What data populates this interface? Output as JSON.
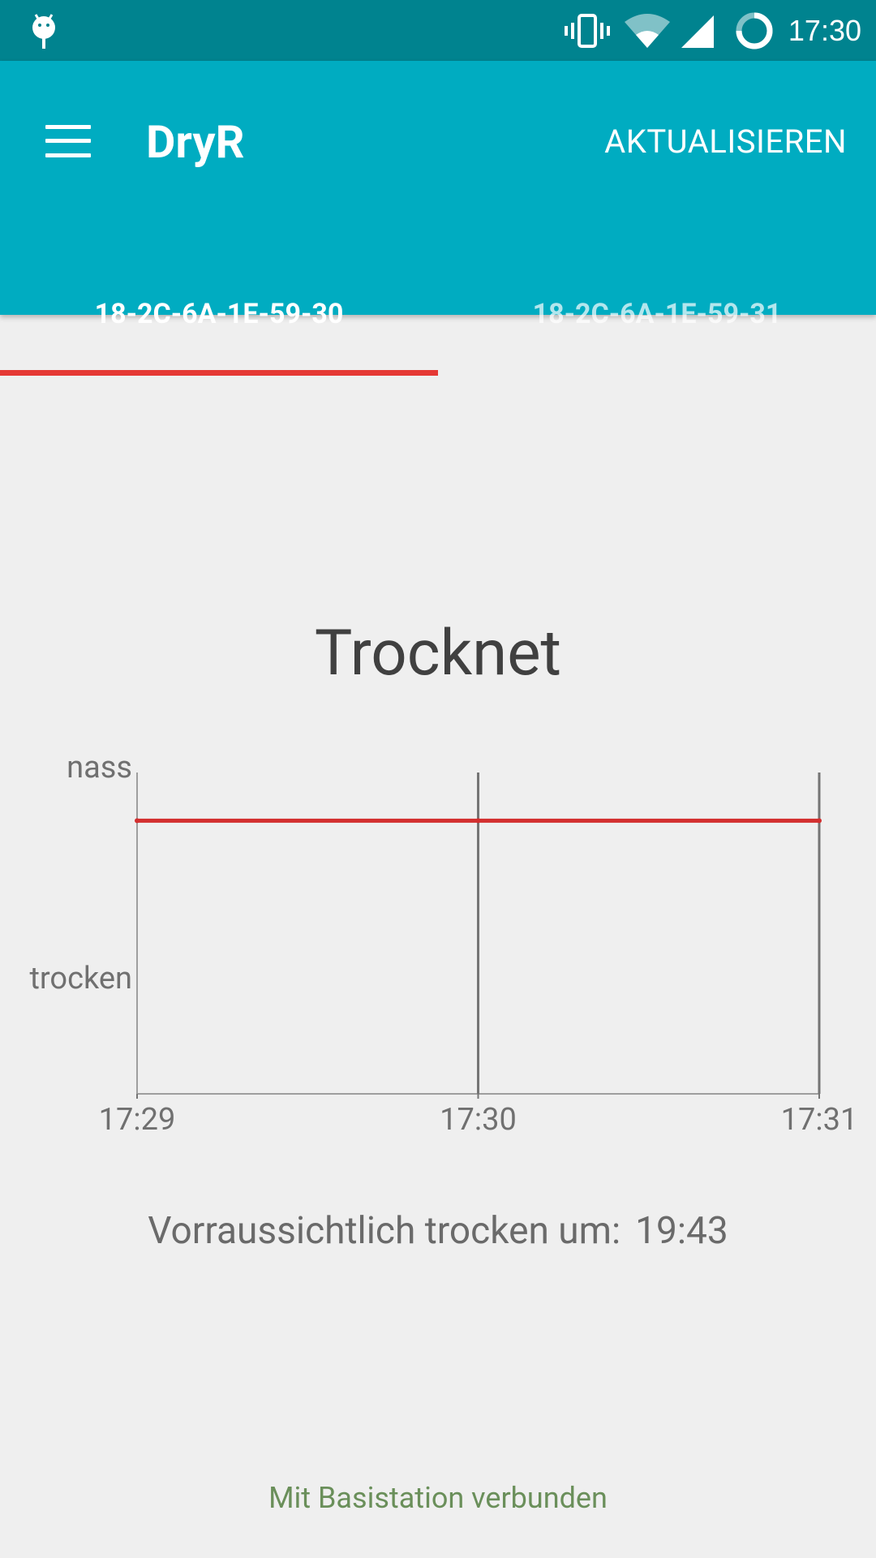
{
  "status_bar": {
    "time": "17:30",
    "icons": [
      "android-debug-icon",
      "vibrate-icon",
      "wifi-icon",
      "signal-icon",
      "sync-icon"
    ]
  },
  "app_bar": {
    "menu_icon": "hamburger-menu-icon",
    "title": "DryR",
    "action_label": "AKTUALISIEREN",
    "background": "#00acc1",
    "statusbar_background": "#00838f"
  },
  "tabs": [
    {
      "label": "18-2C-6A-1E-59-30",
      "active": true
    },
    {
      "label": "18-2C-6A-1E-59-31",
      "active": false
    }
  ],
  "main": {
    "status_title": "Trocknet",
    "forecast_label": "Vorraussichtlich trocken um:",
    "forecast_value": "19:43",
    "connection_status": "Mit Basistation verbunden"
  },
  "chart_data": {
    "type": "line",
    "title": "",
    "xlabel": "",
    "ylabel": "",
    "x_ticks": [
      "17:29",
      "17:30",
      "17:31"
    ],
    "y_ticks": [
      "trocken",
      "nass"
    ],
    "grid": "vertical",
    "series": [
      {
        "values": [
          0.85,
          0.85,
          0.85
        ],
        "color": "#d32f2f"
      }
    ]
  },
  "colors": {
    "accent": "#e53935",
    "line": "#d32f2f",
    "connected": "#6a8f5a"
  }
}
